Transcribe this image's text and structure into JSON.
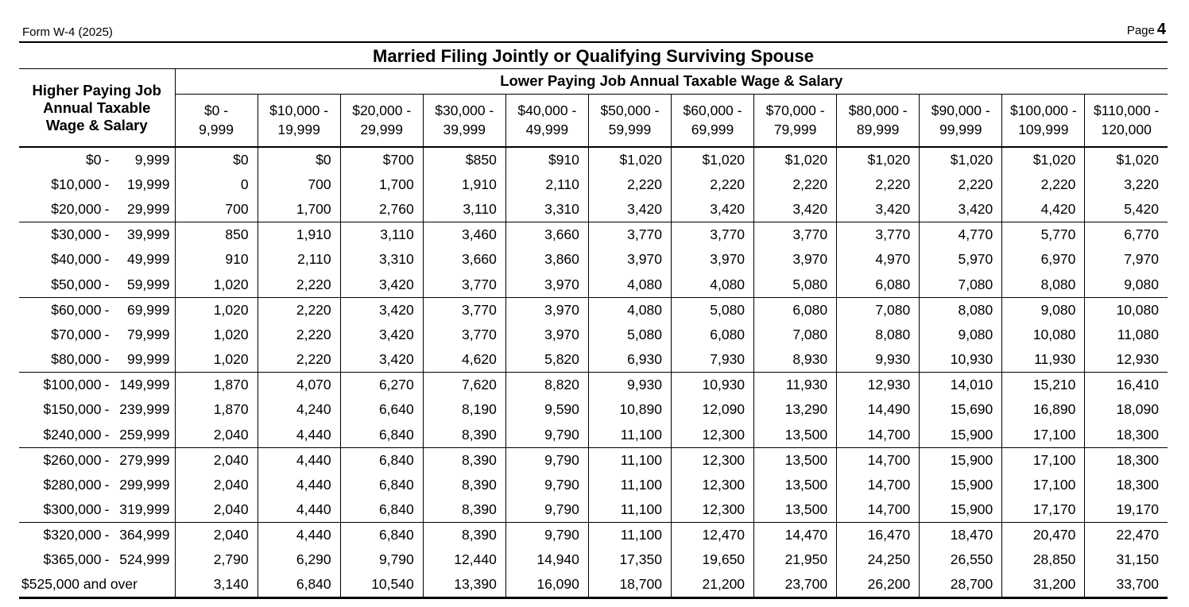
{
  "page_header": {
    "form_label": "Form W-4 (2025)",
    "page_word": "Page",
    "page_number": "4"
  },
  "colors": {
    "text": "#000000",
    "background": "#ffffff",
    "lines": "#000000"
  },
  "table": {
    "title": "Married Filing Jointly or Qualifying Surviving Spouse",
    "col_axis_label": "Lower Paying Job Annual Taxable Wage & Salary",
    "row_axis_label_lines": [
      "Higher Paying Job",
      "Annual Taxable",
      "Wage & Salary"
    ],
    "range_separator": "-",
    "group_size": 3,
    "columns": [
      {
        "top": "$0 -",
        "bottom": "9,999"
      },
      {
        "top": "$10,000 -",
        "bottom": "19,999"
      },
      {
        "top": "$20,000 -",
        "bottom": "29,999"
      },
      {
        "top": "$30,000 -",
        "bottom": "39,999"
      },
      {
        "top": "$40,000 -",
        "bottom": "49,999"
      },
      {
        "top": "$50,000 -",
        "bottom": "59,999"
      },
      {
        "top": "$60,000 -",
        "bottom": "69,999"
      },
      {
        "top": "$70,000 -",
        "bottom": "79,999"
      },
      {
        "top": "$80,000 -",
        "bottom": "89,999"
      },
      {
        "top": "$90,000 -",
        "bottom": "99,999"
      },
      {
        "top": "$100,000 -",
        "bottom": "109,999"
      },
      {
        "top": "$110,000 -",
        "bottom": "120,000"
      }
    ],
    "rows": [
      {
        "start": "$0",
        "end": "9,999",
        "values": [
          "$0",
          "$0",
          "$700",
          "$850",
          "$910",
          "$1,020",
          "$1,020",
          "$1,020",
          "$1,020",
          "$1,020",
          "$1,020",
          "$1,020"
        ]
      },
      {
        "start": "$10,000",
        "end": "19,999",
        "values": [
          "0",
          "700",
          "1,700",
          "1,910",
          "2,110",
          "2,220",
          "2,220",
          "2,220",
          "2,220",
          "2,220",
          "2,220",
          "3,220"
        ]
      },
      {
        "start": "$20,000",
        "end": "29,999",
        "values": [
          "700",
          "1,700",
          "2,760",
          "3,110",
          "3,310",
          "3,420",
          "3,420",
          "3,420",
          "3,420",
          "3,420",
          "4,420",
          "5,420"
        ]
      },
      {
        "start": "$30,000",
        "end": "39,999",
        "values": [
          "850",
          "1,910",
          "3,110",
          "3,460",
          "3,660",
          "3,770",
          "3,770",
          "3,770",
          "3,770",
          "4,770",
          "5,770",
          "6,770"
        ]
      },
      {
        "start": "$40,000",
        "end": "49,999",
        "values": [
          "910",
          "2,110",
          "3,310",
          "3,660",
          "3,860",
          "3,970",
          "3,970",
          "3,970",
          "4,970",
          "5,970",
          "6,970",
          "7,970"
        ]
      },
      {
        "start": "$50,000",
        "end": "59,999",
        "values": [
          "1,020",
          "2,220",
          "3,420",
          "3,770",
          "3,970",
          "4,080",
          "4,080",
          "5,080",
          "6,080",
          "7,080",
          "8,080",
          "9,080"
        ]
      },
      {
        "start": "$60,000",
        "end": "69,999",
        "values": [
          "1,020",
          "2,220",
          "3,420",
          "3,770",
          "3,970",
          "4,080",
          "5,080",
          "6,080",
          "7,080",
          "8,080",
          "9,080",
          "10,080"
        ]
      },
      {
        "start": "$70,000",
        "end": "79,999",
        "values": [
          "1,020",
          "2,220",
          "3,420",
          "3,770",
          "3,970",
          "5,080",
          "6,080",
          "7,080",
          "8,080",
          "9,080",
          "10,080",
          "11,080"
        ]
      },
      {
        "start": "$80,000",
        "end": "99,999",
        "values": [
          "1,020",
          "2,220",
          "3,420",
          "4,620",
          "5,820",
          "6,930",
          "7,930",
          "8,930",
          "9,930",
          "10,930",
          "11,930",
          "12,930"
        ]
      },
      {
        "start": "$100,000",
        "end": "149,999",
        "values": [
          "1,870",
          "4,070",
          "6,270",
          "7,620",
          "8,820",
          "9,930",
          "10,930",
          "11,930",
          "12,930",
          "14,010",
          "15,210",
          "16,410"
        ]
      },
      {
        "start": "$150,000",
        "end": "239,999",
        "values": [
          "1,870",
          "4,240",
          "6,640",
          "8,190",
          "9,590",
          "10,890",
          "12,090",
          "13,290",
          "14,490",
          "15,690",
          "16,890",
          "18,090"
        ]
      },
      {
        "start": "$240,000",
        "end": "259,999",
        "values": [
          "2,040",
          "4,440",
          "6,840",
          "8,390",
          "9,790",
          "11,100",
          "12,300",
          "13,500",
          "14,700",
          "15,900",
          "17,100",
          "18,300"
        ]
      },
      {
        "start": "$260,000",
        "end": "279,999",
        "values": [
          "2,040",
          "4,440",
          "6,840",
          "8,390",
          "9,790",
          "11,100",
          "12,300",
          "13,500",
          "14,700",
          "15,900",
          "17,100",
          "18,300"
        ]
      },
      {
        "start": "$280,000",
        "end": "299,999",
        "values": [
          "2,040",
          "4,440",
          "6,840",
          "8,390",
          "9,790",
          "11,100",
          "12,300",
          "13,500",
          "14,700",
          "15,900",
          "17,100",
          "18,300"
        ]
      },
      {
        "start": "$300,000",
        "end": "319,999",
        "values": [
          "2,040",
          "4,440",
          "6,840",
          "8,390",
          "9,790",
          "11,100",
          "12,300",
          "13,500",
          "14,700",
          "15,900",
          "17,170",
          "19,170"
        ]
      },
      {
        "start": "$320,000",
        "end": "364,999",
        "values": [
          "2,040",
          "4,440",
          "6,840",
          "8,390",
          "9,790",
          "11,100",
          "12,470",
          "14,470",
          "16,470",
          "18,470",
          "20,470",
          "22,470"
        ]
      },
      {
        "start": "$365,000",
        "end": "524,999",
        "values": [
          "2,790",
          "6,290",
          "9,790",
          "12,440",
          "14,940",
          "17,350",
          "19,650",
          "21,950",
          "24,250",
          "26,550",
          "28,850",
          "31,150"
        ]
      },
      {
        "start": "$525,000 and over",
        "end": null,
        "values": [
          "3,140",
          "6,840",
          "10,540",
          "13,390",
          "16,090",
          "18,700",
          "21,200",
          "23,700",
          "26,200",
          "28,700",
          "31,200",
          "33,700"
        ]
      }
    ]
  }
}
